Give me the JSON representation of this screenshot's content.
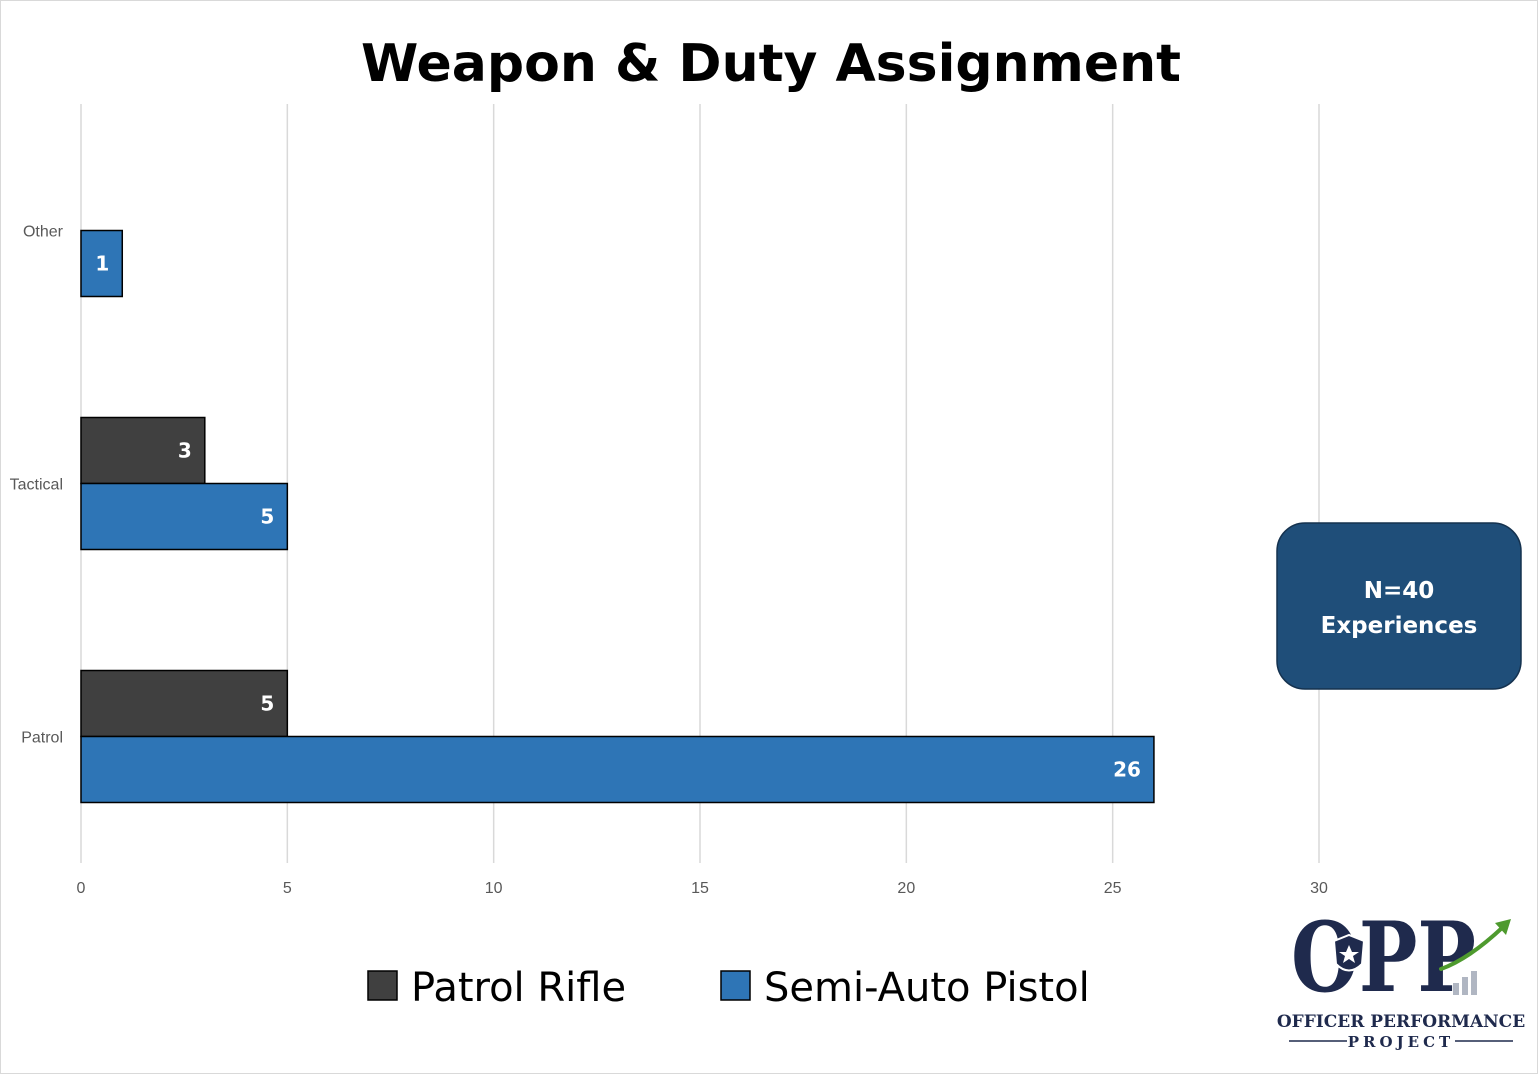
{
  "chart_data": {
    "type": "bar",
    "orientation": "horizontal",
    "title": "Weapon & Duty Assignment",
    "categories": [
      "Patrol",
      "Tactical",
      "Other"
    ],
    "series": [
      {
        "name": "Patrol Rifle",
        "color": "#404040",
        "values": [
          5,
          3,
          null
        ]
      },
      {
        "name": "Semi-Auto Pistol",
        "color": "#2e75b6",
        "values": [
          26,
          5,
          1
        ]
      }
    ],
    "xlim": [
      0,
      30
    ],
    "x_ticks": [
      "0",
      "5",
      "10",
      "15",
      "20",
      "25",
      "30"
    ],
    "xlabel": "",
    "ylabel": "",
    "grid": true,
    "legend": "bottom"
  },
  "callout": {
    "line1": "N=40",
    "line2": "Experiences",
    "color": "#1f4e79"
  },
  "logo": {
    "mark": "OPP",
    "line1": "OFFICER PERFORMANCE",
    "line2": "PROJECT",
    "icons": [
      "shield-star-icon",
      "upward-arrow-icon"
    ],
    "color": "#1f2a4d",
    "accent": "#4e9a2e"
  }
}
